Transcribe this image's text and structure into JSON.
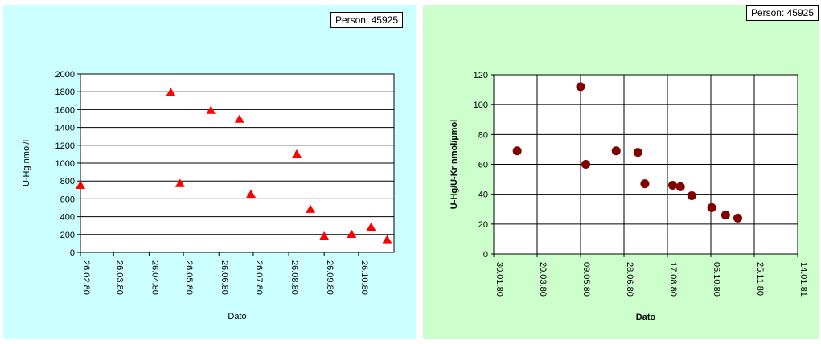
{
  "chart_data": [
    {
      "type": "scatter",
      "annotation": "Person: 45925",
      "xlabel": "Dato",
      "ylabel": "U-Hg nmol/l",
      "ylim": [
        0,
        2000
      ],
      "yticks": [
        0,
        200,
        400,
        600,
        800,
        1000,
        1200,
        1400,
        1600,
        1800,
        2000
      ],
      "xticks": [
        "26.02.80",
        "26.03.80",
        "26.04.80",
        "26.05.80",
        "26.06.80",
        "26.07.80",
        "26.08.80",
        "26.09.80",
        "26.10.80"
      ],
      "xlim": [
        "1980-02-26",
        "1980-11-26"
      ],
      "grid": "horizontal",
      "marker": "triangle",
      "color": "#ff0000",
      "points": [
        {
          "x": "1980-02-26",
          "y": 750
        },
        {
          "x": "1980-05-15",
          "y": 1790
        },
        {
          "x": "1980-05-23",
          "y": 770
        },
        {
          "x": "1980-06-19",
          "y": 1590
        },
        {
          "x": "1980-07-14",
          "y": 1490
        },
        {
          "x": "1980-07-24",
          "y": 650
        },
        {
          "x": "1980-09-02",
          "y": 1100
        },
        {
          "x": "1980-09-14",
          "y": 480
        },
        {
          "x": "1980-09-26",
          "y": 180
        },
        {
          "x": "1980-10-20",
          "y": 200
        },
        {
          "x": "1980-11-06",
          "y": 280
        },
        {
          "x": "1980-11-20",
          "y": 140
        }
      ]
    },
    {
      "type": "scatter",
      "annotation": "Person: 45925",
      "xlabel": "Dato",
      "ylabel": "U-Hg/U-Kr nmol/µmol",
      "ylim": [
        0,
        120
      ],
      "yticks": [
        0,
        20,
        40,
        60,
        80,
        100,
        120
      ],
      "xticks": [
        "30.01.80",
        "20.03.80",
        "09.05.80",
        "28.06.80",
        "17.08.80",
        "06.10.80",
        "25.11.80",
        "14.01.81"
      ],
      "xlim": [
        "1980-01-30",
        "1981-01-14"
      ],
      "grid": "both",
      "marker": "circle",
      "color": "#800000",
      "points": [
        {
          "x": "1980-02-26",
          "y": 69
        },
        {
          "x": "1980-05-09",
          "y": 112
        },
        {
          "x": "1980-05-15",
          "y": 60
        },
        {
          "x": "1980-06-19",
          "y": 69
        },
        {
          "x": "1980-07-14",
          "y": 68
        },
        {
          "x": "1980-07-22",
          "y": 47
        },
        {
          "x": "1980-08-23",
          "y": 46
        },
        {
          "x": "1980-09-01",
          "y": 45
        },
        {
          "x": "1980-09-14",
          "y": 39
        },
        {
          "x": "1980-10-07",
          "y": 31
        },
        {
          "x": "1980-10-23",
          "y": 26
        },
        {
          "x": "1980-11-06",
          "y": 24
        }
      ]
    }
  ]
}
